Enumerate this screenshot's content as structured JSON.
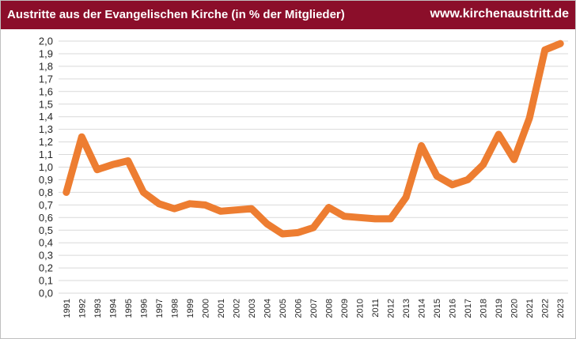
{
  "header": {
    "title": "Austritte aus der Evangelischen Kirche (in % der Mitglieder)",
    "site": "www.kirchenaustritt.de",
    "background": "#8b0e2a"
  },
  "chart_data": {
    "type": "line",
    "title": "Austritte aus der Evangelischen Kirche (in % der Mitglieder)",
    "xlabel": "",
    "ylabel": "",
    "ylim": [
      0,
      2.0
    ],
    "ytick_step": 0.1,
    "yticks": [
      "0,0",
      "0,1",
      "0,2",
      "0,3",
      "0,4",
      "0,5",
      "0,6",
      "0,7",
      "0,8",
      "0,9",
      "1,0",
      "1,1",
      "1,2",
      "1,3",
      "1,4",
      "1,5",
      "1,6",
      "1,7",
      "1,8",
      "1,9",
      "2,0"
    ],
    "grid": true,
    "legend": "none",
    "line_color": "#ed7d31",
    "categories": [
      "1991",
      "1992",
      "1993",
      "1994",
      "1995",
      "1996",
      "1997",
      "1998",
      "1999",
      "2000",
      "2001",
      "2002",
      "2003",
      "2004",
      "2005",
      "2006",
      "2007",
      "2008",
      "2009",
      "2010",
      "2011",
      "2012",
      "2013",
      "2014",
      "2015",
      "2016",
      "2017",
      "2018",
      "2019",
      "2020",
      "2021",
      "2022",
      "2023"
    ],
    "values": [
      0.8,
      1.24,
      0.98,
      1.02,
      1.05,
      0.8,
      0.71,
      0.67,
      0.71,
      0.7,
      0.65,
      0.66,
      0.67,
      0.55,
      0.47,
      0.48,
      0.52,
      0.68,
      0.61,
      0.6,
      0.59,
      0.59,
      0.76,
      1.17,
      0.93,
      0.86,
      0.9,
      1.02,
      1.26,
      1.06,
      1.39,
      1.93,
      1.98
    ]
  }
}
